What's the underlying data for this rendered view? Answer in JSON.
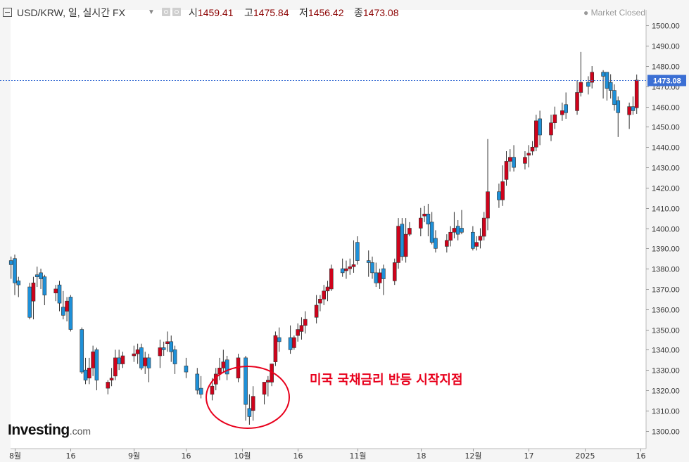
{
  "header": {
    "symbol_title": "USD/KRW, 일, 실시간 FX",
    "dropdown_icon": "caret-down-icon",
    "ohlc": [
      {
        "label": "시",
        "value": "1459.41"
      },
      {
        "label": "고",
        "value": "1475.84"
      },
      {
        "label": "저",
        "value": "1456.42"
      },
      {
        "label": "종",
        "value": "1473.08"
      }
    ],
    "market_status": "Market Closed"
  },
  "logo": {
    "brand": "Investing",
    "tld": ".com"
  },
  "annotation": {
    "text": "미국 국채금리 반등 시작지점"
  },
  "colors": {
    "up": "#d0021b",
    "down": "#1e90d8",
    "last_price": "#3b6fd4",
    "annotation": "#e8001c"
  },
  "chart_data": {
    "type": "candlestick",
    "symbol": "USD/KRW",
    "ylim": [
      1295,
      1505
    ],
    "yticks": [
      "1300.00",
      "1310.00",
      "1320.00",
      "1330.00",
      "1340.00",
      "1350.00",
      "1360.00",
      "1370.00",
      "1380.00",
      "1390.00",
      "1400.00",
      "1410.00",
      "1420.00",
      "1430.00",
      "1440.00",
      "1450.00",
      "1460.00",
      "1470.00",
      "1480.00",
      "1490.00",
      "1500.00"
    ],
    "xticks": [
      {
        "label": "8월",
        "date": "2024-08-01"
      },
      {
        "label": "16",
        "date": "2024-08-16"
      },
      {
        "label": "9월",
        "date": "2024-09-02"
      },
      {
        "label": "16",
        "date": "2024-09-16"
      },
      {
        "label": "10월",
        "date": "2024-10-01"
      },
      {
        "label": "16",
        "date": "2024-10-16"
      },
      {
        "label": "11월",
        "date": "2024-11-01"
      },
      {
        "label": "18",
        "date": "2024-11-18"
      },
      {
        "label": "12월",
        "date": "2024-12-02"
      },
      {
        "label": "17",
        "date": "2024-12-17"
      },
      {
        "label": "2025",
        "date": "2025-01-01"
      },
      {
        "label": "16",
        "date": "2025-01-16"
      }
    ],
    "last_price": "1473.08",
    "candles": [
      {
        "date": "2024-07-31",
        "o": 1384.0,
        "h": 1386.0,
        "l": 1375.0,
        "c": 1382.0
      },
      {
        "date": "2024-08-01",
        "o": 1385.0,
        "h": 1387.0,
        "l": 1367.0,
        "c": 1373.0
      },
      {
        "date": "2024-08-02",
        "o": 1374.0,
        "h": 1376.0,
        "l": 1366.0,
        "c": 1372.0
      },
      {
        "date": "2024-08-05",
        "o": 1371.0,
        "h": 1373.0,
        "l": 1355.0,
        "c": 1356.0
      },
      {
        "date": "2024-08-06",
        "o": 1364.0,
        "h": 1376.0,
        "l": 1355.0,
        "c": 1373.0
      },
      {
        "date": "2024-08-07",
        "o": 1377.0,
        "h": 1381.0,
        "l": 1371.0,
        "c": 1376.0
      },
      {
        "date": "2024-08-08",
        "o": 1378.0,
        "h": 1380.0,
        "l": 1370.0,
        "c": 1375.0
      },
      {
        "date": "2024-08-09",
        "o": 1376.0,
        "h": 1377.0,
        "l": 1362.0,
        "c": 1367.0
      },
      {
        "date": "2024-08-12",
        "o": 1368.0,
        "h": 1372.0,
        "l": 1364.0,
        "c": 1370.0
      },
      {
        "date": "2024-08-13",
        "o": 1372.0,
        "h": 1374.0,
        "l": 1359.0,
        "c": 1363.0
      },
      {
        "date": "2024-08-14",
        "o": 1361.0,
        "h": 1369.0,
        "l": 1355.0,
        "c": 1357.0
      },
      {
        "date": "2024-08-15",
        "o": 1359.0,
        "h": 1366.0,
        "l": 1354.0,
        "c": 1364.0
      },
      {
        "date": "2024-08-16",
        "o": 1366.0,
        "h": 1367.0,
        "l": 1349.0,
        "c": 1350.0
      },
      {
        "date": "2024-08-19",
        "o": 1350.0,
        "h": 1351.0,
        "l": 1328.0,
        "c": 1329.0
      },
      {
        "date": "2024-08-20",
        "o": 1330.0,
        "h": 1336.0,
        "l": 1323.0,
        "c": 1325.0
      },
      {
        "date": "2024-08-21",
        "o": 1326.0,
        "h": 1336.0,
        "l": 1323.0,
        "c": 1331.0
      },
      {
        "date": "2024-08-22",
        "o": 1331.0,
        "h": 1342.0,
        "l": 1327.0,
        "c": 1339.0
      },
      {
        "date": "2024-08-23",
        "o": 1340.0,
        "h": 1341.0,
        "l": 1320.0,
        "c": 1325.0
      },
      {
        "date": "2024-08-26",
        "o": 1321.0,
        "h": 1325.0,
        "l": 1318.0,
        "c": 1324.0
      },
      {
        "date": "2024-08-27",
        "o": 1325.0,
        "h": 1331.0,
        "l": 1322.0,
        "c": 1326.0
      },
      {
        "date": "2024-08-28",
        "o": 1327.0,
        "h": 1340.0,
        "l": 1325.0,
        "c": 1336.0
      },
      {
        "date": "2024-08-29",
        "o": 1336.0,
        "h": 1340.0,
        "l": 1330.0,
        "c": 1333.0
      },
      {
        "date": "2024-08-30",
        "o": 1333.0,
        "h": 1339.0,
        "l": 1331.0,
        "c": 1337.0
      },
      {
        "date": "2024-09-02",
        "o": 1337.0,
        "h": 1342.0,
        "l": 1334.0,
        "c": 1338.0
      },
      {
        "date": "2024-09-03",
        "o": 1338.0,
        "h": 1343.0,
        "l": 1333.0,
        "c": 1340.0
      },
      {
        "date": "2024-09-04",
        "o": 1341.0,
        "h": 1343.0,
        "l": 1330.0,
        "c": 1331.0
      },
      {
        "date": "2024-09-05",
        "o": 1332.0,
        "h": 1339.0,
        "l": 1328.0,
        "c": 1336.0
      },
      {
        "date": "2024-09-06",
        "o": 1336.0,
        "h": 1338.0,
        "l": 1324.0,
        "c": 1331.0
      },
      {
        "date": "2024-09-09",
        "o": 1337.0,
        "h": 1345.0,
        "l": 1331.0,
        "c": 1341.0
      },
      {
        "date": "2024-09-10",
        "o": 1341.0,
        "h": 1344.0,
        "l": 1337.0,
        "c": 1340.0
      },
      {
        "date": "2024-09-11",
        "o": 1343.0,
        "h": 1349.0,
        "l": 1339.0,
        "c": 1344.0
      },
      {
        "date": "2024-09-12",
        "o": 1344.0,
        "h": 1347.0,
        "l": 1334.0,
        "c": 1339.0
      },
      {
        "date": "2024-09-13",
        "o": 1340.0,
        "h": 1342.0,
        "l": 1328.0,
        "c": 1333.0
      },
      {
        "date": "2024-09-16",
        "o": 1332.0,
        "h": 1336.0,
        "l": 1326.0,
        "c": 1329.0
      },
      {
        "date": "2024-09-19",
        "o": 1328.0,
        "h": 1331.0,
        "l": 1318.0,
        "c": 1320.0
      },
      {
        "date": "2024-09-20",
        "o": 1321.0,
        "h": 1327.0,
        "l": 1316.0,
        "c": 1318.0
      },
      {
        "date": "2024-09-23",
        "o": 1318.0,
        "h": 1326.0,
        "l": 1315.0,
        "c": 1322.0
      },
      {
        "date": "2024-09-24",
        "o": 1323.0,
        "h": 1331.0,
        "l": 1320.0,
        "c": 1328.0
      },
      {
        "date": "2024-09-25",
        "o": 1328.0,
        "h": 1336.0,
        "l": 1325.0,
        "c": 1331.0
      },
      {
        "date": "2024-09-26",
        "o": 1331.0,
        "h": 1340.0,
        "l": 1329.0,
        "c": 1334.0
      },
      {
        "date": "2024-09-27",
        "o": 1335.0,
        "h": 1337.0,
        "l": 1325.0,
        "c": 1328.0
      },
      {
        "date": "2024-09-30",
        "o": 1326.0,
        "h": 1338.0,
        "l": 1324.0,
        "c": 1336.0
      },
      {
        "date": "2024-10-02",
        "o": 1336.0,
        "h": 1337.0,
        "l": 1305.0,
        "c": 1313.0
      },
      {
        "date": "2024-10-03",
        "o": 1311.0,
        "h": 1318.0,
        "l": 1303.0,
        "c": 1307.0
      },
      {
        "date": "2024-10-04",
        "o": 1310.0,
        "h": 1322.0,
        "l": 1305.0,
        "c": 1317.0
      },
      {
        "date": "2024-10-07",
        "o": 1318.0,
        "h": 1324.0,
        "l": 1313.0,
        "c": 1324.0
      },
      {
        "date": "2024-10-08",
        "o": 1324.0,
        "h": 1327.0,
        "l": 1317.0,
        "c": 1325.0
      },
      {
        "date": "2024-10-09",
        "o": 1324.0,
        "h": 1333.0,
        "l": 1322.0,
        "c": 1333.0
      },
      {
        "date": "2024-10-10",
        "o": 1334.0,
        "h": 1349.0,
        "l": 1332.0,
        "c": 1347.0
      },
      {
        "date": "2024-10-11",
        "o": 1346.0,
        "h": 1351.0,
        "l": 1339.0,
        "c": 1344.0
      },
      {
        "date": "2024-10-14",
        "o": 1346.0,
        "h": 1352.0,
        "l": 1338.0,
        "c": 1340.0
      },
      {
        "date": "2024-10-15",
        "o": 1341.0,
        "h": 1347.0,
        "l": 1340.0,
        "c": 1346.0
      },
      {
        "date": "2024-10-16",
        "o": 1347.0,
        "h": 1353.0,
        "l": 1344.0,
        "c": 1350.0
      },
      {
        "date": "2024-10-17",
        "o": 1349.0,
        "h": 1356.0,
        "l": 1345.0,
        "c": 1352.0
      },
      {
        "date": "2024-10-18",
        "o": 1352.0,
        "h": 1359.0,
        "l": 1348.0,
        "c": 1355.0
      },
      {
        "date": "2024-10-21",
        "o": 1356.0,
        "h": 1367.0,
        "l": 1353.0,
        "c": 1362.0
      },
      {
        "date": "2024-10-22",
        "o": 1363.0,
        "h": 1367.0,
        "l": 1359.0,
        "c": 1365.0
      },
      {
        "date": "2024-10-23",
        "o": 1365.0,
        "h": 1372.0,
        "l": 1362.0,
        "c": 1369.0
      },
      {
        "date": "2024-10-24",
        "o": 1369.0,
        "h": 1374.0,
        "l": 1364.0,
        "c": 1371.0
      },
      {
        "date": "2024-10-25",
        "o": 1370.0,
        "h": 1382.0,
        "l": 1369.0,
        "c": 1380.0
      },
      {
        "date": "2024-10-28",
        "o": 1380.0,
        "h": 1385.0,
        "l": 1376.0,
        "c": 1378.0
      },
      {
        "date": "2024-10-29",
        "o": 1379.0,
        "h": 1384.0,
        "l": 1375.0,
        "c": 1380.0
      },
      {
        "date": "2024-10-30",
        "o": 1380.0,
        "h": 1385.0,
        "l": 1377.0,
        "c": 1381.0
      },
      {
        "date": "2024-10-31",
        "o": 1381.0,
        "h": 1394.0,
        "l": 1378.0,
        "c": 1382.0
      },
      {
        "date": "2024-11-01",
        "o": 1393.0,
        "h": 1396.0,
        "l": 1382.0,
        "c": 1384.0
      },
      {
        "date": "2024-11-04",
        "o": 1384.0,
        "h": 1389.0,
        "l": 1376.0,
        "c": 1383.0
      },
      {
        "date": "2024-11-05",
        "o": 1383.0,
        "h": 1386.0,
        "l": 1375.0,
        "c": 1378.0
      },
      {
        "date": "2024-11-06",
        "o": 1378.0,
        "h": 1383.0,
        "l": 1371.0,
        "c": 1373.0
      },
      {
        "date": "2024-11-07",
        "o": 1373.0,
        "h": 1380.0,
        "l": 1370.0,
        "c": 1378.0
      },
      {
        "date": "2024-11-08",
        "o": 1380.0,
        "h": 1382.0,
        "l": 1367.0,
        "c": 1375.0
      },
      {
        "date": "2024-11-11",
        "o": 1374.0,
        "h": 1385.0,
        "l": 1372.0,
        "c": 1383.0
      },
      {
        "date": "2024-11-12",
        "o": 1383.0,
        "h": 1405.0,
        "l": 1380.0,
        "c": 1401.0
      },
      {
        "date": "2024-11-13",
        "o": 1402.0,
        "h": 1405.0,
        "l": 1384.0,
        "c": 1386.0
      },
      {
        "date": "2024-11-14",
        "o": 1386.0,
        "h": 1405.0,
        "l": 1383.0,
        "c": 1397.0
      },
      {
        "date": "2024-11-15",
        "o": 1397.0,
        "h": 1403.0,
        "l": 1396.0,
        "c": 1400.0
      },
      {
        "date": "2024-11-18",
        "o": 1400.0,
        "h": 1410.0,
        "l": 1396.0,
        "c": 1405.0
      },
      {
        "date": "2024-11-19",
        "o": 1406.0,
        "h": 1411.0,
        "l": 1403.0,
        "c": 1407.0
      },
      {
        "date": "2024-11-20",
        "o": 1407.0,
        "h": 1412.0,
        "l": 1396.0,
        "c": 1402.0
      },
      {
        "date": "2024-11-21",
        "o": 1403.0,
        "h": 1408.0,
        "l": 1392.0,
        "c": 1393.0
      },
      {
        "date": "2024-11-22",
        "o": 1395.0,
        "h": 1399.0,
        "l": 1388.0,
        "c": 1390.0
      },
      {
        "date": "2024-11-25",
        "o": 1391.0,
        "h": 1397.0,
        "l": 1388.0,
        "c": 1394.0
      },
      {
        "date": "2024-11-26",
        "o": 1394.0,
        "h": 1401.0,
        "l": 1391.0,
        "c": 1398.0
      },
      {
        "date": "2024-11-27",
        "o": 1398.0,
        "h": 1408.0,
        "l": 1395.0,
        "c": 1400.0
      },
      {
        "date": "2024-11-28",
        "o": 1401.0,
        "h": 1404.0,
        "l": 1394.0,
        "c": 1397.0
      },
      {
        "date": "2024-11-29",
        "o": 1400.0,
        "h": 1409.0,
        "l": 1397.0,
        "c": 1398.0
      },
      {
        "date": "2024-12-02",
        "o": 1398.0,
        "h": 1401.0,
        "l": 1389.0,
        "c": 1390.0
      },
      {
        "date": "2024-12-03",
        "o": 1391.0,
        "h": 1396.0,
        "l": 1389.0,
        "c": 1393.0
      },
      {
        "date": "2024-12-04",
        "o": 1394.0,
        "h": 1400.0,
        "l": 1390.0,
        "c": 1396.0
      },
      {
        "date": "2024-12-05",
        "o": 1396.0,
        "h": 1408.0,
        "l": 1394.0,
        "c": 1405.0
      },
      {
        "date": "2024-12-06",
        "o": 1405.0,
        "h": 1444.0,
        "l": 1399.0,
        "c": 1418.0
      },
      {
        "date": "2024-12-09",
        "o": 1418.0,
        "h": 1422.0,
        "l": 1410.0,
        "c": 1414.0
      },
      {
        "date": "2024-12-10",
        "o": 1414.0,
        "h": 1431.0,
        "l": 1411.0,
        "c": 1423.0
      },
      {
        "date": "2024-12-11",
        "o": 1424.0,
        "h": 1438.0,
        "l": 1421.0,
        "c": 1433.0
      },
      {
        "date": "2024-12-12",
        "o": 1433.0,
        "h": 1439.0,
        "l": 1428.0,
        "c": 1435.0
      },
      {
        "date": "2024-12-13",
        "o": 1435.0,
        "h": 1441.0,
        "l": 1428.0,
        "c": 1430.0
      },
      {
        "date": "2024-12-16",
        "o": 1432.0,
        "h": 1438.0,
        "l": 1429.0,
        "c": 1435.0
      },
      {
        "date": "2024-12-17",
        "o": 1436.0,
        "h": 1441.0,
        "l": 1430.0,
        "c": 1437.0
      },
      {
        "date": "2024-12-18",
        "o": 1438.0,
        "h": 1443.0,
        "l": 1436.0,
        "c": 1440.0
      },
      {
        "date": "2024-12-19",
        "o": 1440.0,
        "h": 1456.0,
        "l": 1438.0,
        "c": 1453.0
      },
      {
        "date": "2024-12-20",
        "o": 1454.0,
        "h": 1458.0,
        "l": 1441.0,
        "c": 1446.0
      },
      {
        "date": "2024-12-23",
        "o": 1446.0,
        "h": 1456.0,
        "l": 1443.0,
        "c": 1452.0
      },
      {
        "date": "2024-12-24",
        "o": 1452.0,
        "h": 1460.0,
        "l": 1449.0,
        "c": 1456.0
      },
      {
        "date": "2024-12-26",
        "o": 1456.0,
        "h": 1462.0,
        "l": 1453.0,
        "c": 1458.0
      },
      {
        "date": "2024-12-27",
        "o": 1461.0,
        "h": 1467.0,
        "l": 1454.0,
        "c": 1457.0
      },
      {
        "date": "2024-12-30",
        "o": 1458.0,
        "h": 1473.0,
        "l": 1456.0,
        "c": 1467.0
      },
      {
        "date": "2024-12-31",
        "o": 1467.0,
        "h": 1487.0,
        "l": 1465.0,
        "c": 1472.0
      },
      {
        "date": "2025-01-02",
        "o": 1472.0,
        "h": 1475.0,
        "l": 1466.0,
        "c": 1470.0
      },
      {
        "date": "2025-01-03",
        "o": 1472.0,
        "h": 1480.0,
        "l": 1469.0,
        "c": 1477.0
      },
      {
        "date": "2025-01-06",
        "o": 1477.0,
        "h": 1478.0,
        "l": 1464.0,
        "c": 1475.0
      },
      {
        "date": "2025-01-07",
        "o": 1477.0,
        "h": 1477.0,
        "l": 1463.0,
        "c": 1469.0
      },
      {
        "date": "2025-01-08",
        "o": 1472.0,
        "h": 1476.0,
        "l": 1464.0,
        "c": 1468.0
      },
      {
        "date": "2025-01-09",
        "o": 1468.0,
        "h": 1471.0,
        "l": 1458.0,
        "c": 1461.0
      },
      {
        "date": "2025-01-10",
        "o": 1463.0,
        "h": 1465.0,
        "l": 1445.0,
        "c": 1457.0
      },
      {
        "date": "2025-01-13",
        "o": 1456.0,
        "h": 1462.0,
        "l": 1449.0,
        "c": 1460.0
      },
      {
        "date": "2025-01-14",
        "o": 1460.0,
        "h": 1465.0,
        "l": 1456.0,
        "c": 1458.0
      },
      {
        "date": "2025-01-15",
        "o": 1459.41,
        "h": 1475.84,
        "l": 1456.42,
        "c": 1473.08
      }
    ]
  }
}
